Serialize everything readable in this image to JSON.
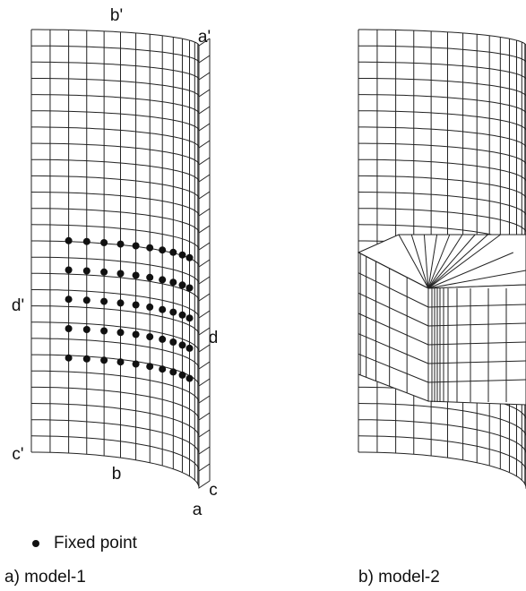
{
  "labels": [
    "b'",
    "a'",
    "d'",
    "d",
    "c'",
    "b",
    "c",
    "a"
  ],
  "legend": {
    "text": "Fixed point"
  },
  "captions": [
    "a) model-1",
    "b) model-2"
  ]
}
